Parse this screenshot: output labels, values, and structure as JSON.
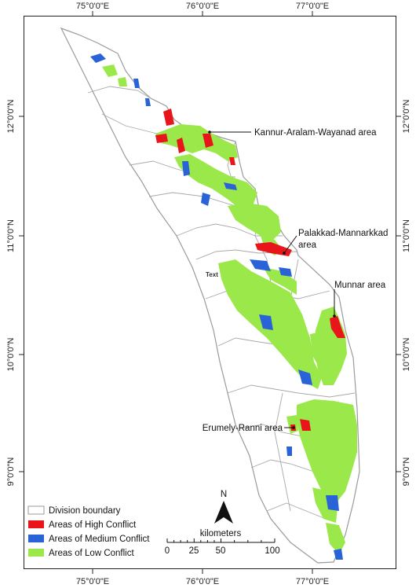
{
  "axes": {
    "longitude_labels": [
      "75°0'0\"E",
      "76°0'0\"E",
      "77°0'0\"E"
    ],
    "latitude_labels": [
      "12°0'0\"N",
      "11°0'0\"N",
      "10°0'0\"N",
      "9°0'0\"N"
    ]
  },
  "callouts": [
    {
      "label": "Kannur-Aralam-Wayanad area"
    },
    {
      "label": "Palakkad-Mannarkkad",
      "label2": "area"
    },
    {
      "label": "Munnar area"
    },
    {
      "label": "Erumely-Ranni area"
    }
  ],
  "inline_label": "Text",
  "legend": {
    "items": [
      {
        "label": "Division boundary",
        "color": "#ffffff",
        "stroke": "#999999"
      },
      {
        "label": "Areas of High Conflict",
        "color": "#e8161b"
      },
      {
        "label": "Areas of Medium Conflict",
        "color": "#2a63d8"
      },
      {
        "label": "Areas of Low Conflict",
        "color": "#9be84a"
      }
    ]
  },
  "north_arrow": {
    "label": "N"
  },
  "scale_bar": {
    "unit": "kilometers",
    "ticks": [
      "0",
      "25",
      "50",
      "100"
    ]
  },
  "colors": {
    "high": "#e8161b",
    "medium": "#2a63d8",
    "low": "#9be84a",
    "boundary": "#9a9a9a"
  }
}
